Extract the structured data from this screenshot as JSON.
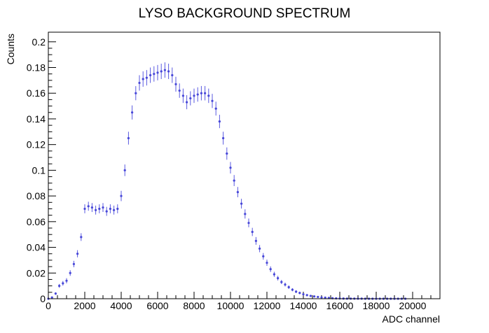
{
  "chart_data": {
    "type": "scatter",
    "title": "LYSO BACKGROUND SPECTRUM",
    "xlabel": "ADC channel",
    "ylabel": "Counts",
    "xlim": [
      0,
      21500
    ],
    "ylim": [
      0,
      0.2075
    ],
    "x_major_ticks": [
      0,
      2000,
      4000,
      6000,
      8000,
      10000,
      12000,
      14000,
      16000,
      18000,
      20000
    ],
    "x_tick_labels": [
      "0",
      "2000",
      "4000",
      "6000",
      "8000",
      "10000",
      "12000",
      "14000",
      "16000",
      "18000",
      "20000"
    ],
    "y_major_ticks": [
      0,
      0.02,
      0.04,
      0.06,
      0.08,
      0.1,
      0.12,
      0.14,
      0.16,
      0.18,
      0.2
    ],
    "y_tick_labels": [
      "0",
      "0.02",
      "0.04",
      "0.06",
      "0.08",
      "0.1",
      "0.12",
      "0.14",
      "0.16",
      "0.18",
      "0.2"
    ],
    "grid": false,
    "legend": "none",
    "marker_color": "#4848d8",
    "series": [
      {
        "x": [
          0,
          200,
          400,
          600,
          800,
          1000,
          1200,
          1400,
          1600,
          1800,
          2000,
          2200,
          2400,
          2600,
          2800,
          3000,
          3200,
          3400,
          3600,
          3800,
          4000,
          4200,
          4400,
          4600,
          4800,
          5000,
          5200,
          5400,
          5600,
          5800,
          6000,
          6200,
          6400,
          6600,
          6800,
          7000,
          7200,
          7400,
          7600,
          7800,
          8000,
          8200,
          8400,
          8600,
          8800,
          9000,
          9200,
          9400,
          9600,
          9800,
          10000,
          10200,
          10400,
          10600,
          10800,
          11000,
          11200,
          11400,
          11600,
          11800,
          12000,
          12200,
          12400,
          12600,
          12800,
          13000,
          13200,
          13400,
          13600,
          13800,
          14000,
          14200,
          14400,
          14600,
          14800,
          15000,
          15200,
          15400,
          15600,
          15800,
          16000,
          16200,
          16400,
          16600,
          16800,
          17000,
          17200,
          17400,
          17600,
          17800,
          18000,
          18200,
          18400,
          18600,
          18800,
          19000,
          19200,
          19400,
          19600
        ],
        "y": [
          0,
          0.001,
          0.004,
          0.01,
          0.012,
          0.014,
          0.02,
          0.027,
          0.035,
          0.048,
          0.07,
          0.072,
          0.071,
          0.069,
          0.07,
          0.071,
          0.068,
          0.07,
          0.069,
          0.07,
          0.08,
          0.1,
          0.125,
          0.145,
          0.16,
          0.168,
          0.171,
          0.172,
          0.174,
          0.175,
          0.176,
          0.177,
          0.178,
          0.177,
          0.174,
          0.167,
          0.162,
          0.158,
          0.153,
          0.156,
          0.158,
          0.159,
          0.16,
          0.16,
          0.158,
          0.154,
          0.148,
          0.138,
          0.125,
          0.113,
          0.102,
          0.092,
          0.083,
          0.074,
          0.066,
          0.059,
          0.052,
          0.045,
          0.039,
          0.033,
          0.028,
          0.023,
          0.019,
          0.016,
          0.013,
          0.011,
          0.009,
          0.007,
          0.0055,
          0.0045,
          0.0035,
          0.0028,
          0.0022,
          0.0018,
          0.0014,
          0.001,
          0.0008,
          0.0006,
          0.0004,
          0.0003,
          0.0002,
          0.00015,
          0.0001,
          0.0001,
          0.0001,
          5e-05,
          5e-05,
          0,
          0,
          0,
          0,
          0,
          0,
          0,
          0,
          0,
          0,
          0,
          0
        ],
        "yerr": [
          0,
          0.0005,
          0.001,
          0.0015,
          0.0018,
          0.002,
          0.0022,
          0.0025,
          0.0028,
          0.003,
          0.0035,
          0.0035,
          0.0035,
          0.0035,
          0.0035,
          0.0035,
          0.0035,
          0.0035,
          0.0035,
          0.0035,
          0.004,
          0.0045,
          0.005,
          0.0055,
          0.0055,
          0.006,
          0.006,
          0.006,
          0.006,
          0.006,
          0.006,
          0.006,
          0.006,
          0.006,
          0.006,
          0.0058,
          0.0056,
          0.0056,
          0.0055,
          0.0055,
          0.0056,
          0.0056,
          0.0056,
          0.0056,
          0.0056,
          0.0055,
          0.0054,
          0.0052,
          0.005,
          0.0048,
          0.0045,
          0.0043,
          0.004,
          0.0038,
          0.0036,
          0.0034,
          0.0032,
          0.003,
          0.0028,
          0.0026,
          0.0024,
          0.0022,
          0.002,
          0.0018,
          0.0016,
          0.0015,
          0.0014,
          0.0012,
          0.0011,
          0.001,
          0.0009,
          0.0008,
          0.0007,
          0.0006,
          0.0006,
          0.0005,
          0.0004,
          0.0004,
          0.0003,
          0.0003,
          0.0002,
          0.0002,
          0.0002,
          0.0002,
          0.0002,
          0.0001,
          0.0001,
          0,
          0,
          0,
          0,
          0,
          0,
          0,
          0,
          0,
          0,
          0,
          0
        ]
      }
    ]
  }
}
